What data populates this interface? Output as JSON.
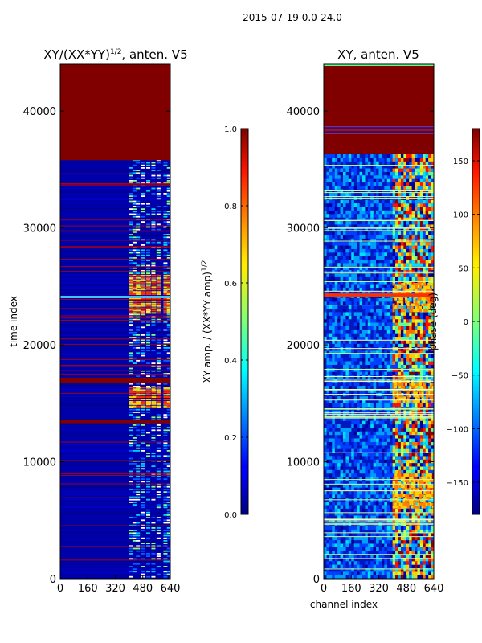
{
  "figure": {
    "suptitle": "2015-07-19 0.0-24.0"
  },
  "colors": {
    "dark_red": "#800000",
    "dark_blue": "#00008f",
    "blue": "#0000ff",
    "frame": "#000000"
  },
  "chart_data": [
    {
      "type": "heatmap",
      "title_main": "XY/(XX*YY)",
      "title_sup": "1/2",
      "title_suffix": ", anten. V5",
      "xlabel": "",
      "ylabel": "time index",
      "xlim": [
        0,
        640
      ],
      "ylim": [
        0,
        44000
      ],
      "xticks": [
        "0",
        "160",
        "320",
        "480",
        "640"
      ],
      "yticks": [
        "0",
        "10000",
        "20000",
        "30000",
        "40000"
      ],
      "ytick_values": [
        0,
        10000,
        20000,
        30000,
        40000
      ],
      "xtick_values": [
        0,
        160,
        320,
        480,
        640
      ],
      "colorbar": {
        "label_main": "XY amp. / (XX*YY amp)",
        "label_sup": "1/2",
        "range": [
          0.0,
          1.0
        ],
        "ticks": [
          "0.0",
          "0.2",
          "0.4",
          "0.6",
          "0.8",
          "1.0"
        ],
        "tick_values": [
          0.0,
          0.2,
          0.4,
          0.6,
          0.8,
          1.0
        ]
      },
      "features": {
        "flagged_top_range": [
          35800,
          44000
        ],
        "flagged_bands": [
          [
            16700,
            17200
          ],
          [
            13300,
            13600
          ]
        ],
        "active_channel_range": [
          400,
          640
        ]
      }
    },
    {
      "type": "heatmap",
      "title": "XY, anten. V5",
      "xlabel": "channel index",
      "ylabel": "",
      "xlim": [
        0,
        640
      ],
      "ylim": [
        0,
        44000
      ],
      "xticks": [
        "0",
        "160",
        "320",
        "480",
        "640"
      ],
      "yticks": [
        "0",
        "10000",
        "20000",
        "30000",
        "40000"
      ],
      "ytick_values": [
        0,
        10000,
        20000,
        30000,
        40000
      ],
      "xtick_values": [
        0,
        160,
        320,
        480,
        640
      ],
      "colorbar": {
        "label": "phase (deg)",
        "range": [
          -180,
          180
        ],
        "ticks": [
          "150",
          "100",
          "50",
          "0",
          "−50",
          "−100",
          "−150"
        ],
        "tick_values": [
          150,
          100,
          50,
          0,
          -50,
          -100,
          -150
        ]
      },
      "features": {
        "flagged_top_range": [
          36300,
          44000
        ],
        "active_channel_range": [
          400,
          640
        ]
      }
    }
  ]
}
